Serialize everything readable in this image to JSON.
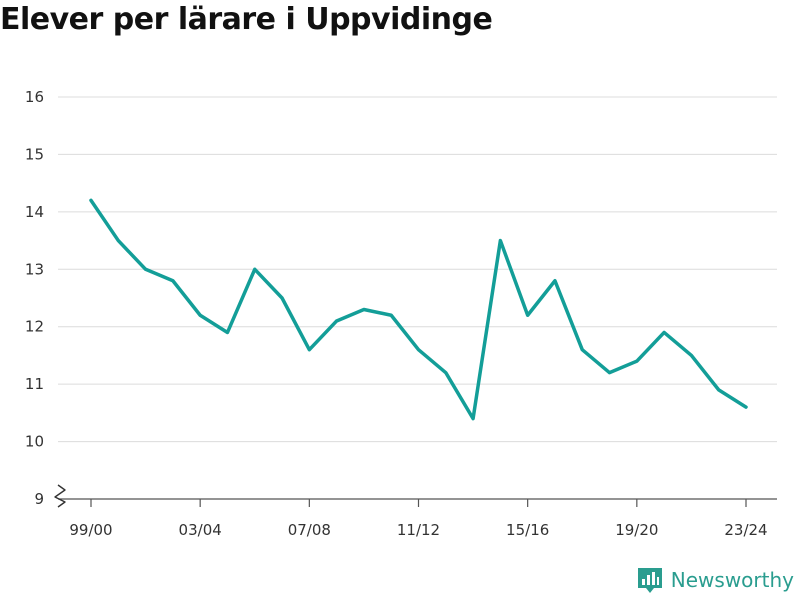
{
  "title": "Elever per lärare i Uppvidinge",
  "brand": {
    "name": "Newsworthy",
    "icon": "newsworthy-logo-icon",
    "color": "#2a9d8f"
  },
  "chart_data": {
    "type": "line",
    "title": "Elever per lärare i Uppvidinge",
    "xlabel": "",
    "ylabel": "",
    "ylim": [
      9,
      16
    ],
    "yticks": [
      9,
      10,
      11,
      12,
      13,
      14,
      15,
      16
    ],
    "y_axis_break": true,
    "grid": true,
    "legend": "none",
    "categories": [
      "99/00",
      "00/01",
      "01/02",
      "02/03",
      "03/04",
      "04/05",
      "05/06",
      "06/07",
      "07/08",
      "08/09",
      "09/10",
      "10/11",
      "11/12",
      "12/13",
      "13/14",
      "14/15",
      "15/16",
      "16/17",
      "17/18",
      "18/19",
      "19/20",
      "20/21",
      "21/22",
      "22/23",
      "23/24"
    ],
    "xtick_labels": [
      "99/00",
      "03/04",
      "07/08",
      "11/12",
      "15/16",
      "19/20",
      "23/24"
    ],
    "series": [
      {
        "color": "#139e98",
        "values": [
          14.2,
          13.5,
          13.0,
          12.8,
          12.2,
          11.9,
          13.0,
          12.5,
          11.6,
          12.1,
          12.3,
          12.2,
          11.6,
          11.2,
          10.4,
          13.5,
          12.2,
          12.8,
          11.6,
          11.2,
          11.4,
          11.9,
          11.5,
          10.9,
          10.6
        ]
      }
    ]
  }
}
